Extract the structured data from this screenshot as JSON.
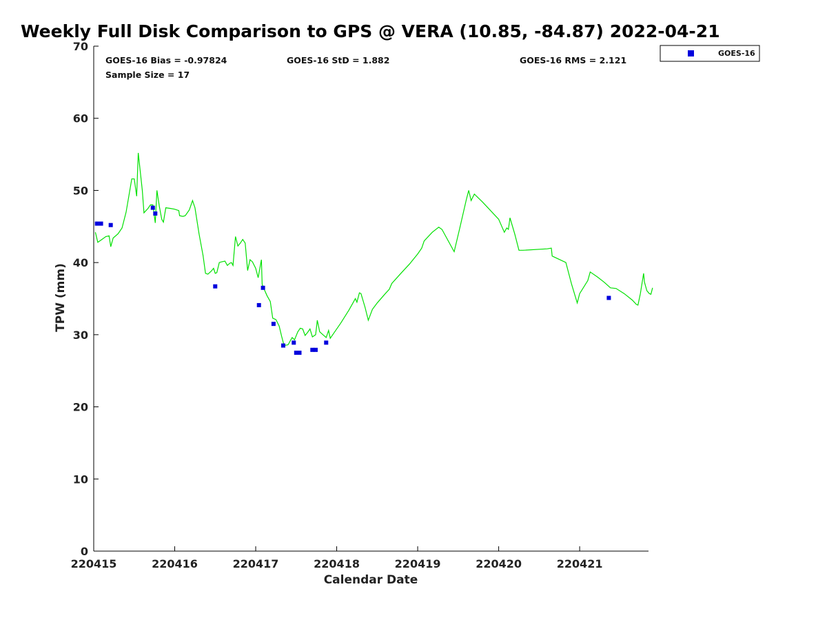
{
  "chart_data": {
    "type": "scatter",
    "title": "Weekly Full Disk Comparison to GPS @ VERA (10.85, -84.87) 2022-04-21",
    "xlabel": "Calendar Date",
    "ylabel": "TPW (mm)",
    "x_unit": "day index from 220415",
    "xlim": [
      0,
      6.85
    ],
    "ylim": [
      0,
      70
    ],
    "x_ticks": [
      {
        "value": 0,
        "label": "220415"
      },
      {
        "value": 1,
        "label": "220416"
      },
      {
        "value": 2,
        "label": "220417"
      },
      {
        "value": 3,
        "label": "220418"
      },
      {
        "value": 4,
        "label": "220419"
      },
      {
        "value": 5,
        "label": "220420"
      },
      {
        "value": 6,
        "label": "220421"
      }
    ],
    "y_ticks": [
      0,
      10,
      20,
      30,
      40,
      50,
      60,
      70
    ],
    "grid": false,
    "legend_position": "top-right, outside plot",
    "stats": {
      "bias": "GOES-16 Bias = -0.97824",
      "std": "GOES-16 StD = 1.882",
      "rms": "GOES-16 RMS = 2.121",
      "sample": "Sample Size = 17"
    },
    "series": [
      {
        "name": "GOES-16",
        "kind": "markers",
        "color": "#0000dd",
        "points": [
          [
            0.04,
            45.4
          ],
          [
            0.09,
            45.4
          ],
          [
            0.21,
            45.2
          ],
          [
            0.73,
            47.6
          ],
          [
            0.76,
            46.8
          ],
          [
            1.5,
            36.7
          ],
          [
            2.04,
            34.1
          ],
          [
            2.09,
            36.5
          ],
          [
            2.22,
            31.5
          ],
          [
            2.34,
            28.5
          ],
          [
            2.47,
            28.9
          ],
          [
            2.5,
            27.5
          ],
          [
            2.54,
            27.5
          ],
          [
            2.7,
            27.9
          ],
          [
            2.74,
            27.9
          ],
          [
            2.87,
            28.9
          ],
          [
            6.36,
            35.1
          ]
        ]
      },
      {
        "name": "",
        "kind": "line",
        "color": "#00e000",
        "points": [
          [
            0.02,
            44.2
          ],
          [
            0.05,
            42.8
          ],
          [
            0.1,
            43.2
          ],
          [
            0.15,
            43.6
          ],
          [
            0.19,
            43.7
          ],
          [
            0.21,
            42.2
          ],
          [
            0.24,
            43.4
          ],
          [
            0.3,
            44.0
          ],
          [
            0.35,
            44.8
          ],
          [
            0.4,
            47.0
          ],
          [
            0.47,
            51.6
          ],
          [
            0.5,
            51.6
          ],
          [
            0.53,
            49.2
          ],
          [
            0.55,
            55.2
          ],
          [
            0.6,
            50.0
          ],
          [
            0.62,
            46.9
          ],
          [
            0.67,
            47.5
          ],
          [
            0.7,
            48.0
          ],
          [
            0.73,
            48.0
          ],
          [
            0.76,
            45.5
          ],
          [
            0.78,
            50.0
          ],
          [
            0.81,
            47.8
          ],
          [
            0.84,
            46.0
          ],
          [
            0.86,
            45.6
          ],
          [
            0.89,
            47.6
          ],
          [
            0.95,
            47.5
          ],
          [
            1.0,
            47.4
          ],
          [
            1.05,
            47.2
          ],
          [
            1.06,
            46.5
          ],
          [
            1.1,
            46.4
          ],
          [
            1.13,
            46.5
          ],
          [
            1.18,
            47.3
          ],
          [
            1.22,
            48.6
          ],
          [
            1.25,
            47.6
          ],
          [
            1.3,
            44.0
          ],
          [
            1.35,
            41.0
          ],
          [
            1.38,
            38.5
          ],
          [
            1.41,
            38.4
          ],
          [
            1.45,
            38.8
          ],
          [
            1.48,
            39.2
          ],
          [
            1.5,
            38.5
          ],
          [
            1.52,
            38.6
          ],
          [
            1.55,
            40.0
          ],
          [
            1.58,
            40.1
          ],
          [
            1.62,
            40.2
          ],
          [
            1.65,
            39.6
          ],
          [
            1.68,
            39.9
          ],
          [
            1.7,
            40.0
          ],
          [
            1.72,
            39.6
          ],
          [
            1.75,
            43.6
          ],
          [
            1.78,
            42.3
          ],
          [
            1.81,
            42.7
          ],
          [
            1.84,
            43.2
          ],
          [
            1.87,
            42.7
          ],
          [
            1.9,
            38.9
          ],
          [
            1.93,
            40.4
          ],
          [
            1.96,
            40.1
          ],
          [
            2.0,
            39.2
          ],
          [
            2.03,
            37.9
          ],
          [
            2.07,
            40.4
          ],
          [
            2.08,
            37.0
          ],
          [
            2.1,
            36.4
          ],
          [
            2.14,
            35.4
          ],
          [
            2.18,
            34.6
          ],
          [
            2.21,
            32.3
          ],
          [
            2.25,
            32.1
          ],
          [
            2.29,
            31.2
          ],
          [
            2.32,
            29.8
          ],
          [
            2.35,
            28.5
          ],
          [
            2.4,
            28.6
          ],
          [
            2.45,
            29.6
          ],
          [
            2.48,
            29.3
          ],
          [
            2.52,
            30.4
          ],
          [
            2.55,
            30.9
          ],
          [
            2.58,
            30.8
          ],
          [
            2.61,
            29.9
          ],
          [
            2.64,
            30.3
          ],
          [
            2.67,
            30.8
          ],
          [
            2.7,
            29.7
          ],
          [
            2.74,
            30.0
          ],
          [
            2.76,
            32.0
          ],
          [
            2.79,
            30.4
          ],
          [
            2.84,
            29.9
          ],
          [
            2.87,
            29.6
          ],
          [
            2.9,
            30.6
          ],
          [
            2.92,
            29.5
          ],
          [
            2.97,
            30.3
          ],
          [
            3.05,
            31.6
          ],
          [
            3.15,
            33.4
          ],
          [
            3.2,
            34.4
          ],
          [
            3.23,
            35.0
          ],
          [
            3.25,
            34.5
          ],
          [
            3.28,
            35.8
          ],
          [
            3.3,
            35.7
          ],
          [
            3.35,
            33.8
          ],
          [
            3.39,
            32.0
          ],
          [
            3.44,
            33.5
          ],
          [
            3.5,
            34.4
          ],
          [
            3.6,
            35.7
          ],
          [
            3.65,
            36.3
          ],
          [
            3.68,
            37.1
          ],
          [
            3.8,
            38.6
          ],
          [
            3.9,
            39.8
          ],
          [
            4.0,
            41.2
          ],
          [
            4.05,
            42.0
          ],
          [
            4.08,
            43.0
          ],
          [
            4.18,
            44.2
          ],
          [
            4.26,
            44.9
          ],
          [
            4.3,
            44.6
          ],
          [
            4.45,
            41.5
          ],
          [
            4.52,
            44.8
          ],
          [
            4.6,
            48.7
          ],
          [
            4.63,
            50.0
          ],
          [
            4.66,
            48.6
          ],
          [
            4.7,
            49.5
          ],
          [
            4.8,
            48.4
          ],
          [
            4.9,
            47.2
          ],
          [
            5.0,
            46.0
          ],
          [
            5.07,
            44.2
          ],
          [
            5.1,
            44.8
          ],
          [
            5.12,
            44.6
          ],
          [
            5.14,
            46.2
          ],
          [
            5.2,
            43.9
          ],
          [
            5.25,
            41.7
          ],
          [
            5.3,
            41.7
          ],
          [
            5.6,
            41.9
          ],
          [
            5.65,
            42.0
          ],
          [
            5.66,
            40.9
          ],
          [
            5.83,
            40.0
          ],
          [
            5.9,
            37.0
          ],
          [
            5.97,
            34.4
          ],
          [
            6.0,
            35.7
          ],
          [
            6.1,
            37.5
          ],
          [
            6.13,
            38.7
          ],
          [
            6.22,
            38.0
          ],
          [
            6.3,
            37.3
          ],
          [
            6.38,
            36.5
          ],
          [
            6.45,
            36.4
          ],
          [
            6.55,
            35.7
          ],
          [
            6.65,
            34.8
          ],
          [
            6.7,
            34.2
          ],
          [
            6.72,
            34.1
          ],
          [
            6.75,
            35.7
          ],
          [
            6.79,
            38.5
          ],
          [
            6.8,
            37.3
          ],
          [
            6.83,
            36.1
          ],
          [
            6.86,
            35.7
          ],
          [
            6.88,
            35.6
          ],
          [
            6.9,
            36.5
          ]
        ]
      }
    ]
  }
}
